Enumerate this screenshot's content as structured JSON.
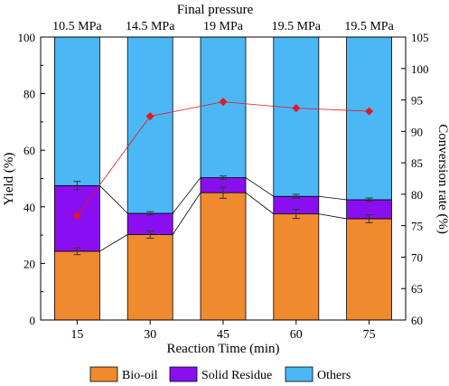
{
  "chart_data": {
    "type": "stacked-bar + line",
    "title": "Final pressure",
    "categories": [
      "15",
      "30",
      "45",
      "60",
      "75"
    ],
    "top_labels": [
      "10.5 MPa",
      "14.5 MPa",
      "19 MPa",
      "19.5 MPa",
      "19.5 MPa"
    ],
    "xlabel": "Reaction Time (min)",
    "ylabel": "Yield (%)",
    "y2label": "Conversion rate (%)",
    "ylim": [
      0,
      100
    ],
    "y_ticks": [
      "0",
      "20",
      "40",
      "60",
      "80",
      "100"
    ],
    "y2lim": [
      60,
      105
    ],
    "y2_ticks": [
      "60",
      "65",
      "70",
      "75",
      "80",
      "85",
      "90",
      "95",
      "100",
      "105"
    ],
    "series": [
      {
        "name": "Bio-oil",
        "color": "#f08a2e",
        "values": [
          24.3,
          30.2,
          45.0,
          37.5,
          35.8
        ],
        "errors": [
          1.2,
          1.3,
          2.0,
          1.6,
          1.4
        ]
      },
      {
        "name": "Solid Residue",
        "color": "#8a0ff0",
        "values": [
          23.2,
          7.5,
          5.3,
          6.2,
          6.7
        ],
        "errors": [
          1.5,
          0.6,
          0.6,
          0.7,
          0.6
        ]
      },
      {
        "name": "Others",
        "color": "#4bb8f5",
        "values": [
          52.5,
          62.3,
          49.7,
          56.3,
          57.5
        ]
      }
    ],
    "conversion_rate": {
      "name": "Conversion rate",
      "color": "#e8141e",
      "values": [
        76.6,
        92.4,
        94.7,
        93.7,
        93.2
      ]
    },
    "legend_position": "bottom"
  }
}
